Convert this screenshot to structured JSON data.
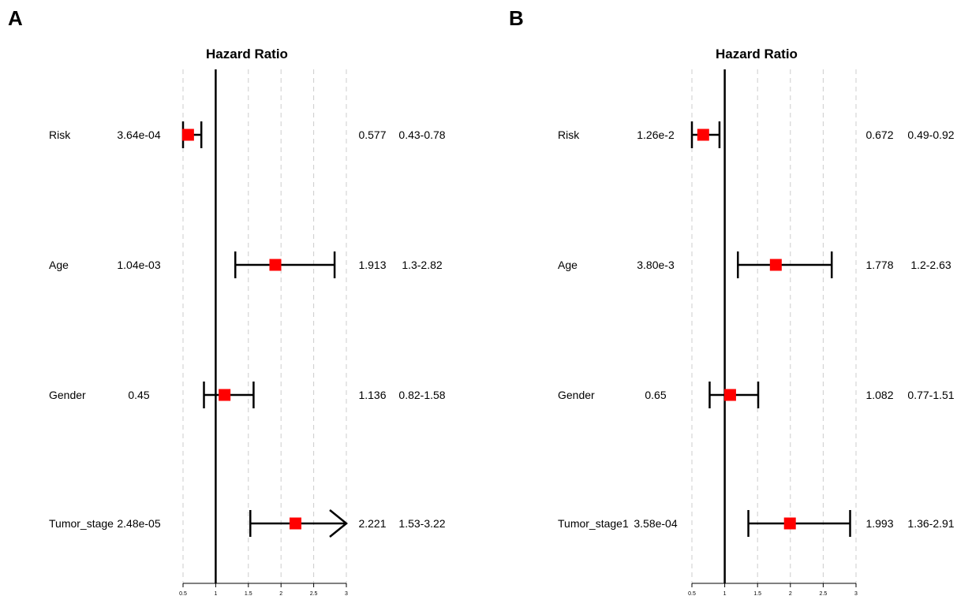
{
  "chart_data": [
    {
      "type": "forest",
      "panel_label": "A",
      "title": "Hazard Ratio",
      "xlim": [
        0.5,
        3
      ],
      "xticks": [
        "0.5",
        "1",
        "1.5",
        "2",
        "2.5",
        "3"
      ],
      "reference_line": 1,
      "grid": "vertical dashed",
      "rows": [
        {
          "name": "Risk",
          "pvalue": "3.64e-04",
          "hr": 0.577,
          "lower": 0.43,
          "upper": 0.78,
          "hr_text": "0.577",
          "ci_text": "0.43-0.78"
        },
        {
          "name": "Age",
          "pvalue": "1.04e-03",
          "hr": 1.913,
          "lower": 1.3,
          "upper": 2.82,
          "hr_text": "1.913",
          "ci_text": "1.3-2.82"
        },
        {
          "name": "Gender",
          "pvalue": "0.45",
          "hr": 1.136,
          "lower": 0.82,
          "upper": 1.58,
          "hr_text": "1.136",
          "ci_text": "0.82-1.58"
        },
        {
          "name": "Tumor_stage",
          "pvalue": "2.48e-05",
          "hr": 2.221,
          "lower": 1.53,
          "upper": 3.22,
          "hr_text": "2.221",
          "ci_text": "1.53-3.22"
        }
      ]
    },
    {
      "type": "forest",
      "panel_label": "B",
      "title": "Hazard Ratio",
      "xlim": [
        0.5,
        3
      ],
      "xticks": [
        "0.5",
        "1",
        "1.5",
        "2",
        "2.5",
        "3"
      ],
      "reference_line": 1,
      "grid": "vertical dashed",
      "rows": [
        {
          "name": "Risk",
          "pvalue": "1.26e-2",
          "hr": 0.672,
          "lower": 0.49,
          "upper": 0.92,
          "hr_text": "0.672",
          "ci_text": "0.49-0.92"
        },
        {
          "name": "Age",
          "pvalue": "3.80e-3",
          "hr": 1.778,
          "lower": 1.2,
          "upper": 2.63,
          "hr_text": "1.778",
          "ci_text": "1.2-2.63"
        },
        {
          "name": "Gender",
          "pvalue": "0.65",
          "hr": 1.082,
          "lower": 0.77,
          "upper": 1.51,
          "hr_text": "1.082",
          "ci_text": "0.77-1.51"
        },
        {
          "name": "Tumor_stage1",
          "pvalue": "3.58e-04",
          "hr": 1.993,
          "lower": 1.36,
          "upper": 2.91,
          "hr_text": "1.993",
          "ci_text": "1.36-2.91"
        }
      ]
    }
  ],
  "colors": {
    "marker": "#ff0000",
    "line": "#000000",
    "grid": "#cccccc"
  }
}
